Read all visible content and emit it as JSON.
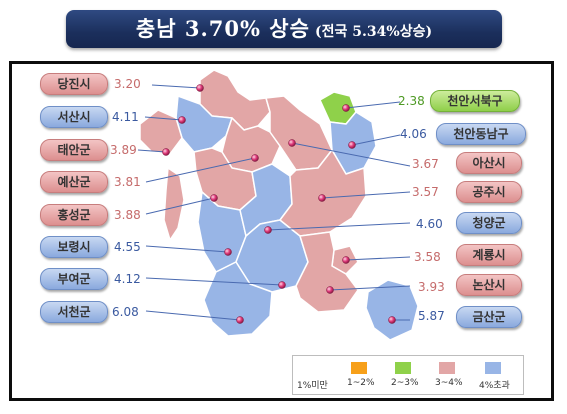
{
  "title": {
    "main": "충남 3.70% 상승",
    "sub": "(전국 5.34%상승)"
  },
  "colors": {
    "pink": "#e2a6a6",
    "blue": "#98b5e6",
    "green": "#8fd14a",
    "orange": "#f7a01a"
  },
  "regions": [
    {
      "name": "당진시",
      "value": "3.20",
      "group": "pink"
    },
    {
      "name": "서산시",
      "value": "4.11",
      "group": "blue"
    },
    {
      "name": "태안군",
      "value": "3.89",
      "group": "pink"
    },
    {
      "name": "예산군",
      "value": "3.81",
      "group": "pink"
    },
    {
      "name": "홍성군",
      "value": "3.88",
      "group": "pink"
    },
    {
      "name": "보령시",
      "value": "4.55",
      "group": "blue"
    },
    {
      "name": "부여군",
      "value": "4.12",
      "group": "blue"
    },
    {
      "name": "서천군",
      "value": "6.08",
      "group": "blue"
    },
    {
      "name": "천안서북구",
      "value": "2.38",
      "group": "green"
    },
    {
      "name": "천안동남구",
      "value": "4.06",
      "group": "blue"
    },
    {
      "name": "아산시",
      "value": "3.67",
      "group": "pink"
    },
    {
      "name": "공주시",
      "value": "3.57",
      "group": "pink"
    },
    {
      "name": "청양군",
      "value": "4.60",
      "group": "blue"
    },
    {
      "name": "계룡시",
      "value": "3.58",
      "group": "pink"
    },
    {
      "name": "논산시",
      "value": "3.93",
      "group": "pink"
    },
    {
      "name": "금산군",
      "value": "5.87",
      "group": "blue"
    }
  ],
  "legend": [
    {
      "label": "1%미만",
      "color": "#ffffff"
    },
    {
      "label": "1~2%",
      "color": "#f7a01a"
    },
    {
      "label": "2~3%",
      "color": "#8fd14a"
    },
    {
      "label": "3~4%",
      "color": "#e2a6a6"
    },
    {
      "label": "4%초과",
      "color": "#98b5e6"
    }
  ]
}
